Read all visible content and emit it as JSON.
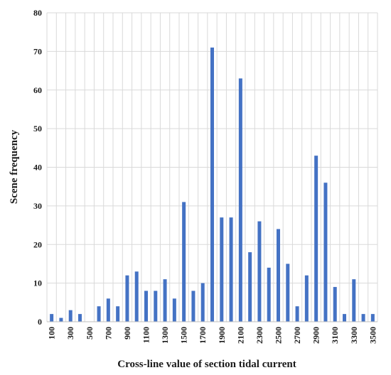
{
  "chart_data": {
    "type": "bar",
    "title": "",
    "xlabel": "Cross-line value of section tidal current",
    "ylabel": "Scene frequency",
    "ylim": [
      0,
      80
    ],
    "yticks": [
      0,
      10,
      20,
      30,
      40,
      50,
      60,
      70,
      80
    ],
    "categories": [
      100,
      200,
      300,
      400,
      500,
      600,
      700,
      800,
      900,
      1000,
      1100,
      1200,
      1300,
      1400,
      1500,
      1600,
      1700,
      1800,
      1900,
      2000,
      2100,
      2200,
      2300,
      2400,
      2500,
      2600,
      2700,
      2800,
      2900,
      3000,
      3100,
      3200,
      3300,
      3400,
      3500
    ],
    "x_tick_labels": [
      "100",
      "300",
      "500",
      "700",
      "900",
      "1100",
      "1300",
      "1500",
      "1700",
      "1900",
      "2100",
      "2300",
      "2500",
      "2700",
      "2900",
      "3100",
      "3300",
      "3500"
    ],
    "values": [
      2,
      1,
      3,
      2,
      0,
      4,
      6,
      4,
      12,
      13,
      8,
      8,
      11,
      6,
      31,
      8,
      10,
      71,
      27,
      27,
      63,
      18,
      26,
      14,
      24,
      15,
      4,
      12,
      43,
      36,
      9,
      2,
      11,
      2,
      2
    ],
    "grid": true,
    "bar_color": "#4472C4",
    "grid_color": "#d9d9d9"
  }
}
